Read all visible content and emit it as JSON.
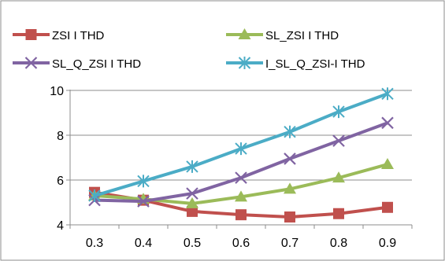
{
  "chart_data": {
    "type": "line",
    "categories": [
      "0.3",
      "0.4",
      "0.5",
      "0.6",
      "0.7",
      "0.8",
      "0.9"
    ],
    "ylim": [
      4,
      10
    ],
    "yticks": [
      "4",
      "6",
      "8",
      "10"
    ],
    "grid": "horizontal",
    "legend_position": "top",
    "series": [
      {
        "name": "ZSI I THD",
        "color": "#c0504d",
        "marker": "square",
        "values": [
          5.45,
          5.1,
          4.6,
          4.45,
          4.35,
          4.5,
          4.78
        ]
      },
      {
        "name": "SL_ZSI I THD",
        "color": "#9bbb59",
        "marker": "triangle",
        "values": [
          5.3,
          5.15,
          4.95,
          5.25,
          5.6,
          6.1,
          6.7
        ]
      },
      {
        "name": "SL_Q_ZSI I THD",
        "color": "#8064a2",
        "marker": "x",
        "values": [
          5.1,
          5.05,
          5.4,
          6.1,
          6.95,
          7.75,
          8.55
        ]
      },
      {
        "name": "I_SL_Q_ZSI-I THD",
        "color": "#4bacc6",
        "marker": "star",
        "values": [
          5.3,
          5.95,
          6.6,
          7.4,
          8.15,
          9.05,
          9.85
        ]
      }
    ]
  }
}
